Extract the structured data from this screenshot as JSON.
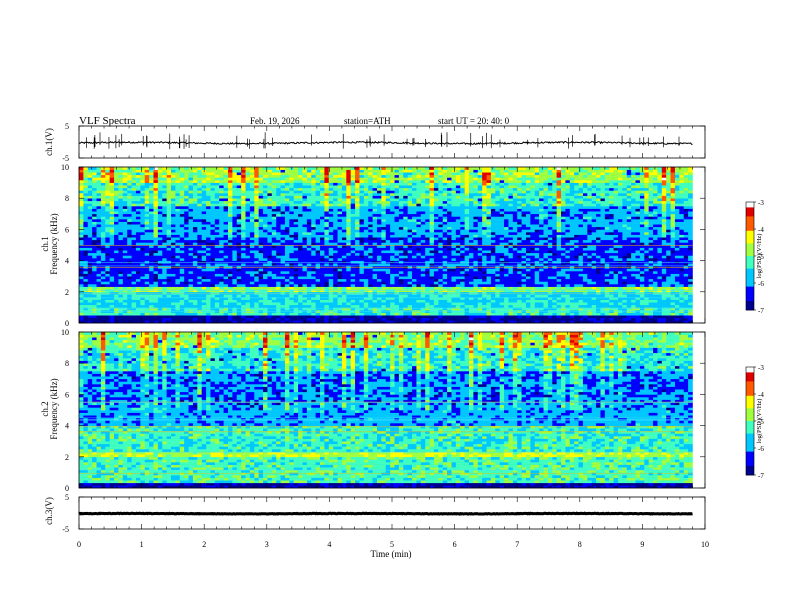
{
  "header": {
    "title": "VLF  Spectra",
    "date": "Feb. 19, 2026",
    "station": "station=ATH",
    "start": "start  UT  =   20: 40: 0"
  },
  "chart_data": [
    {
      "type": "line",
      "ylabel": "ch.1(V)",
      "ylim": [
        -5,
        5
      ],
      "y_ticks": [
        5,
        -5
      ],
      "xlim": [
        0,
        10
      ],
      "series": [
        {
          "color": "#000000",
          "level": -0.3,
          "noise": 0.5,
          "spikes": 55
        }
      ],
      "grid": false
    },
    {
      "type": "heatmap",
      "channel_label": "ch.1",
      "ylabel": "Frequency  (kHz)",
      "ylim": [
        0,
        10
      ],
      "y_ticks": [
        0,
        2,
        4,
        6,
        8,
        10
      ],
      "xlim": [
        0,
        9.8
      ],
      "colorbar": {
        "label": "log(PSD)(V²/Hz)",
        "range": [
          -7,
          -3
        ],
        "ticks": [
          -3,
          -4,
          -5,
          -6,
          -7
        ]
      },
      "bands": [
        {
          "from": 0.0,
          "to": 0.5,
          "log_psd": -6.9
        },
        {
          "from": 0.5,
          "to": 1.0,
          "log_psd": -5.3
        },
        {
          "from": 1.0,
          "to": 2.0,
          "log_psd": -5.6
        },
        {
          "from": 2.0,
          "to": 2.4,
          "log_psd": -4.9
        },
        {
          "from": 2.4,
          "to": 5.5,
          "log_psd": -6.3
        },
        {
          "from": 5.5,
          "to": 7.5,
          "log_psd": -5.9
        },
        {
          "from": 7.5,
          "to": 9.0,
          "log_psd": -5.3
        },
        {
          "from": 9.0,
          "to": 10.0,
          "log_psd": -4.8
        }
      ]
    },
    {
      "type": "heatmap",
      "channel_label": "ch.2",
      "ylabel": "Frequency  (kHz)",
      "ylim": [
        0,
        10
      ],
      "y_ticks": [
        0,
        2,
        4,
        6,
        8,
        10
      ],
      "xlim": [
        0,
        9.8
      ],
      "colorbar": {
        "label": "log(PSD)(V²/Hz)",
        "range": [
          -7,
          -3
        ],
        "ticks": [
          -3,
          -4,
          -5,
          -6,
          -7
        ]
      },
      "bands": [
        {
          "from": 0.0,
          "to": 0.4,
          "log_psd": -6.9
        },
        {
          "from": 0.4,
          "to": 2.0,
          "log_psd": -5.2
        },
        {
          "from": 2.0,
          "to": 2.3,
          "log_psd": -4.6
        },
        {
          "from": 2.3,
          "to": 4.0,
          "log_psd": -5.3
        },
        {
          "from": 4.0,
          "to": 5.5,
          "log_psd": -5.9
        },
        {
          "from": 5.5,
          "to": 7.5,
          "log_psd": -6.1
        },
        {
          "from": 7.5,
          "to": 9.0,
          "log_psd": -5.4
        },
        {
          "from": 9.0,
          "to": 10.0,
          "log_psd": -4.9
        }
      ]
    },
    {
      "type": "line",
      "ylabel": "ch.3(V)",
      "ylim": [
        -5,
        5
      ],
      "y_ticks": [
        5,
        -5
      ],
      "xlim": [
        0,
        10
      ],
      "series": [
        {
          "color": "#000000",
          "level": -0.2,
          "noise": 0.15,
          "spikes": 0
        }
      ],
      "grid": false
    }
  ],
  "x_axis": {
    "label": "Time  (min)",
    "ticks": [
      0,
      1,
      2,
      3,
      4,
      5,
      6,
      7,
      8,
      9,
      10
    ]
  }
}
